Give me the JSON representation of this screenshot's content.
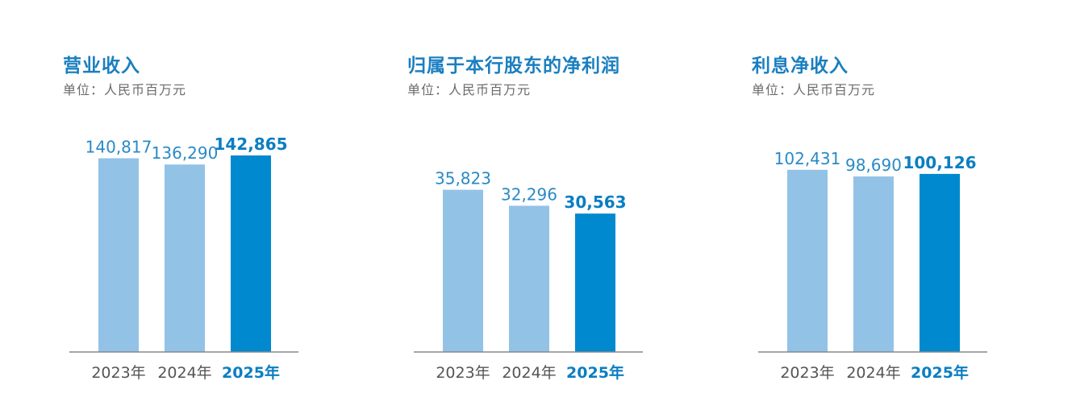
{
  "colors": {
    "bar_previous": "#93c2e7",
    "bar_current": "#0089cf",
    "title": "#1a7fc0",
    "baseline": "#888888"
  },
  "chart_data": [
    {
      "type": "bar",
      "title": "营业收入",
      "subtitle": "单位：人民币百万元",
      "categories": [
        "2023年",
        "2024年",
        "2025年"
      ],
      "values": [
        140817,
        136290,
        142865
      ],
      "value_labels": [
        "140,817",
        "136,290",
        "142,865"
      ],
      "highlight_index": 2,
      "ylim": [
        0,
        142865
      ]
    },
    {
      "type": "bar",
      "title": "归属于本行股东的净利润",
      "subtitle": "单位：人民币百万元",
      "categories": [
        "2023年",
        "2024年",
        "2025年"
      ],
      "values": [
        35823,
        32296,
        30563
      ],
      "value_labels": [
        "35,823",
        "32,296",
        "30,563"
      ],
      "highlight_index": 2,
      "ylim": [
        0,
        43400
      ]
    },
    {
      "type": "bar",
      "title": "利息净收入",
      "subtitle": "单位：人民币百万元",
      "categories": [
        "2023年",
        "2024年",
        "2025年"
      ],
      "values": [
        102431,
        98690,
        100126
      ],
      "value_labels": [
        "102,431",
        "98,690",
        "100,126"
      ],
      "highlight_index": 2,
      "ylim": [
        0,
        110500
      ]
    }
  ]
}
